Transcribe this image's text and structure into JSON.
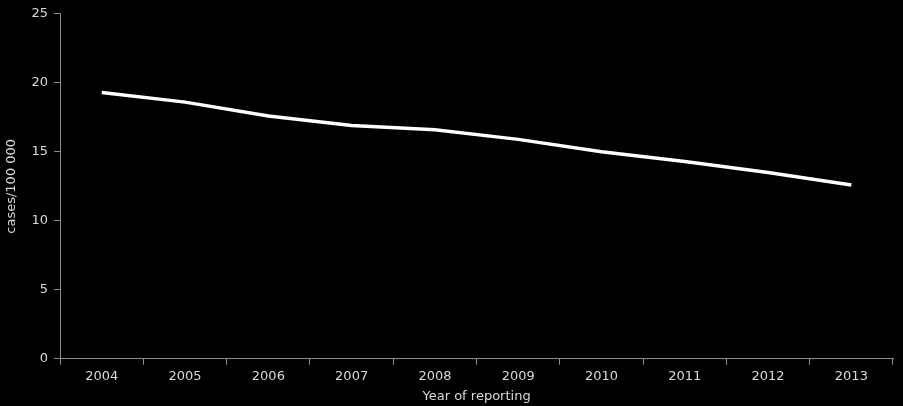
{
  "chart_data": {
    "type": "line",
    "x_label": "Year of reporting",
    "y_label": "cases/100 000",
    "categories": [
      "2004",
      "2005",
      "2006",
      "2007",
      "2008",
      "2009",
      "2010",
      "2011",
      "2012",
      "2013"
    ],
    "values": [
      19.3,
      18.6,
      17.6,
      16.9,
      16.6,
      15.9,
      15.0,
      14.3,
      13.5,
      12.6
    ],
    "color": "#ffffff",
    "marker": "none",
    "ylim": [
      0,
      25
    ],
    "yticks": [
      0,
      5,
      10,
      15,
      20,
      25
    ],
    "grid": false
  }
}
